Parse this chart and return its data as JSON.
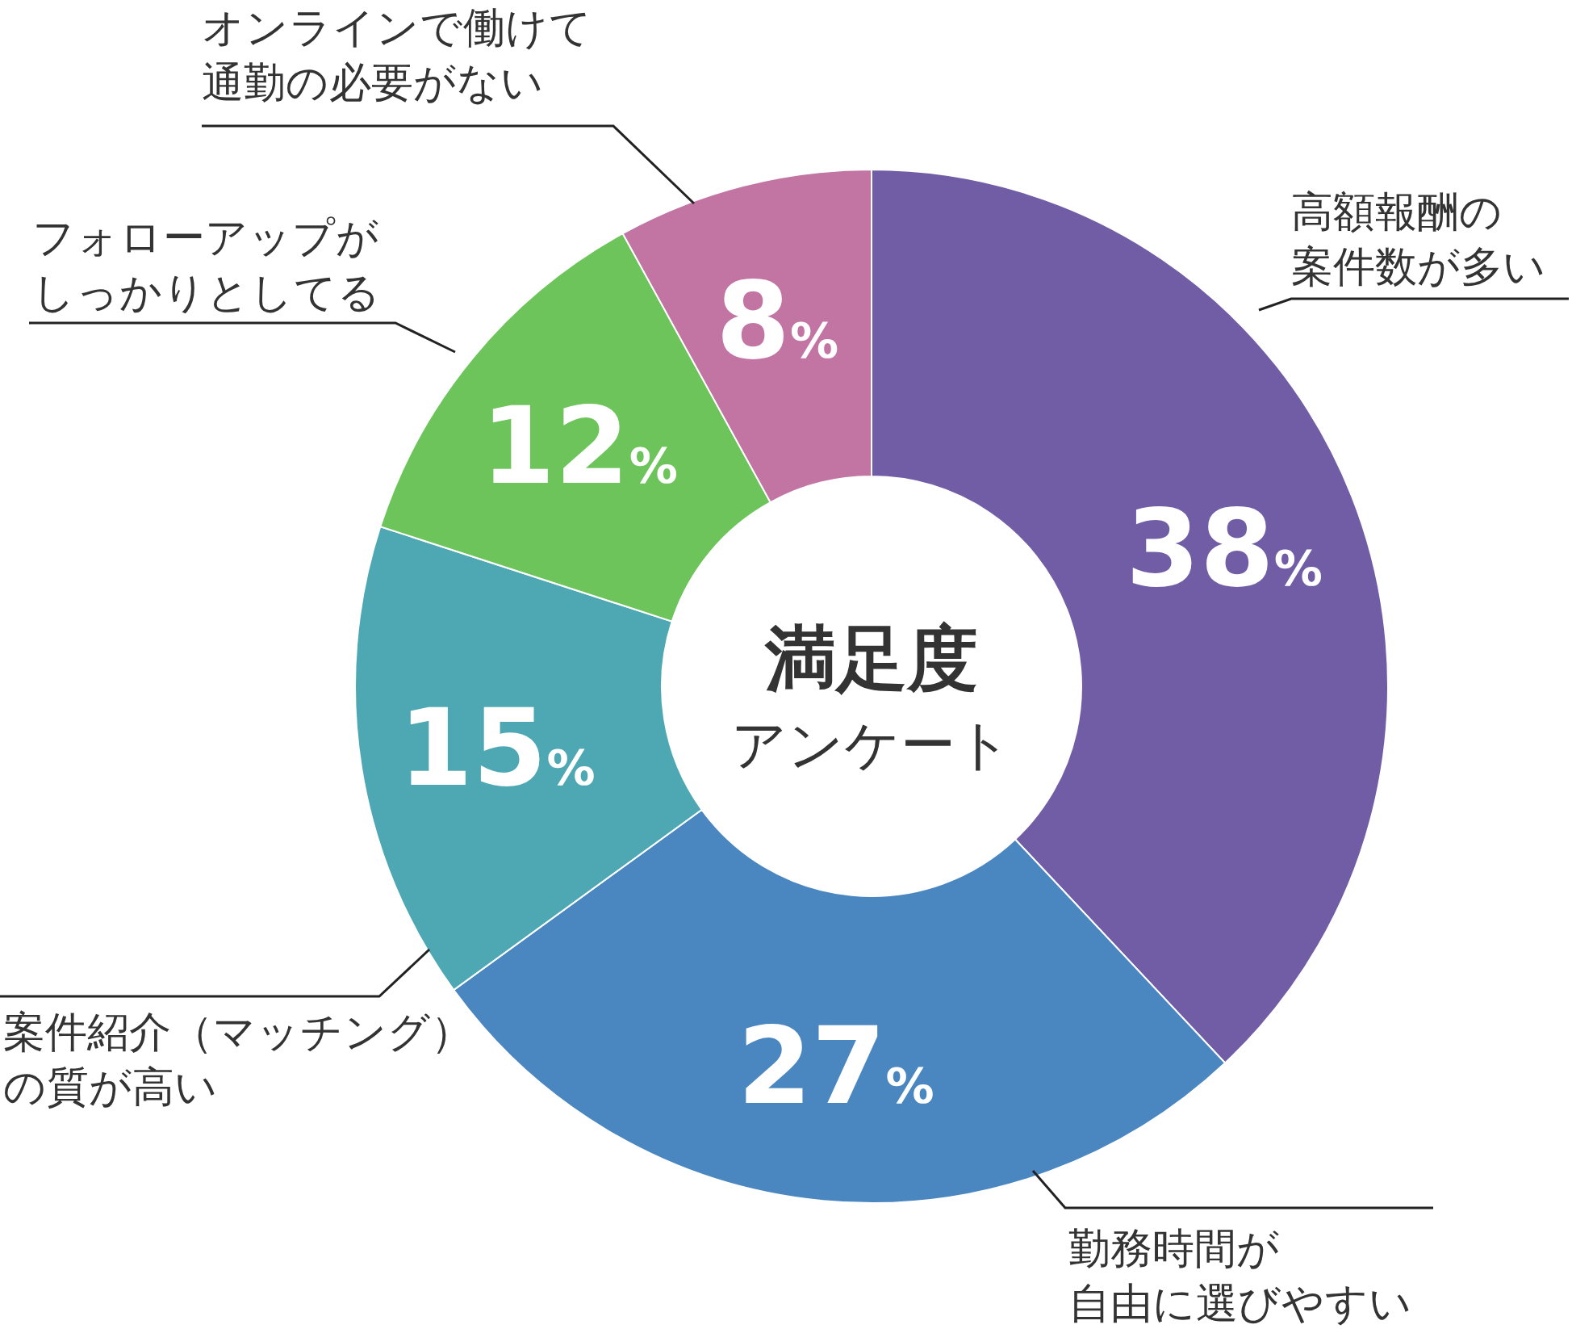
{
  "chart_data": {
    "type": "donut",
    "title": "満足度",
    "subtitle": "アンケート",
    "categories": [
      "高額報酬の案件数が多い",
      "勤務時間が自由に選びやすい",
      "案件紹介（マッチング）の質が高い",
      "フォローアップがしっかりとしてる",
      "オンラインで働けて通勤の必要がない"
    ],
    "values": [
      38,
      27,
      15,
      12,
      8
    ],
    "colors": [
      "#715ca6",
      "#4a86c0",
      "#4ea8b3",
      "#6cc45a",
      "#c274a3"
    ],
    "value_labels": [
      "38%",
      "27%",
      "15%",
      "12%",
      "8%"
    ]
  }
}
